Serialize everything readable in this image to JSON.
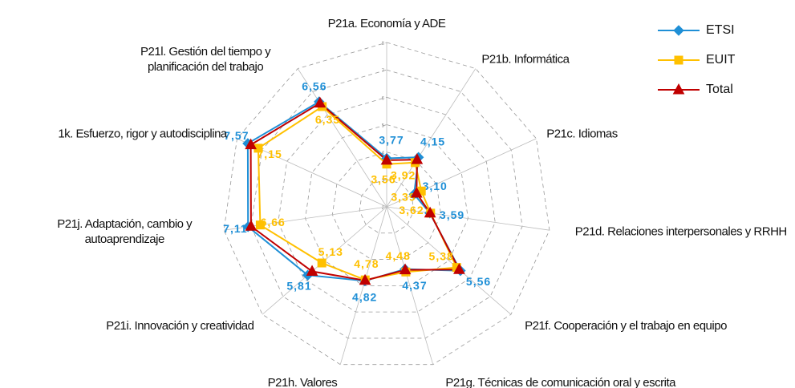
{
  "chart_data": {
    "type": "radar",
    "categories": [
      "P21a. Economía y ADE",
      "P21b. Informática",
      "P21c. Idiomas",
      "P21d. Relaciones interpersonales y RRHH",
      "P21f. Cooperación y el trabajo en equipo",
      "P21g. Técnicas de comunicación oral y escrita",
      "P21h. Valores",
      "P21i. Innovación y creatividad",
      "P21j. Adaptación, cambio y autoaprendizaje",
      "1k. Esfuerzo, rigor y autodisciplina",
      "P21l. Gestión del tiempo y planificación del trabajo"
    ],
    "ylim": [
      2,
      8
    ],
    "yticks": [
      2,
      3,
      4,
      5,
      6,
      7,
      8
    ],
    "grid": true,
    "legend": "top-right",
    "series": [
      {
        "name": "ETSI",
        "color": "#1f8fd6",
        "marker": "diamond",
        "values": [
          3.77,
          4.15,
          3.1,
          3.59,
          5.56,
          4.37,
          4.82,
          5.81,
          7.11,
          7.57,
          6.56
        ],
        "value_labels": [
          "3,77",
          "4,15",
          "3,10",
          "3,59",
          "5,56",
          "4,37",
          "4,82",
          "5,81",
          "7,11",
          "7,57",
          "6,56"
        ]
      },
      {
        "name": "EUIT",
        "color": "#ffc000",
        "marker": "square",
        "values": [
          3.56,
          3.92,
          3.39,
          3.62,
          5.38,
          4.48,
          4.78,
          5.13,
          6.66,
          7.15,
          6.35
        ],
        "value_labels": [
          "3,56",
          "3,92",
          "3,39",
          "3,62",
          "5,38",
          "4,48",
          "4,78",
          "5,13",
          "6,66",
          "7,15",
          "6,35"
        ]
      },
      {
        "name": "Total",
        "color": "#c00000",
        "marker": "triangle",
        "values": [
          3.7,
          4.05,
          3.2,
          3.6,
          5.5,
          4.4,
          4.8,
          5.6,
          7.0,
          7.45,
          6.5
        ]
      }
    ]
  }
}
